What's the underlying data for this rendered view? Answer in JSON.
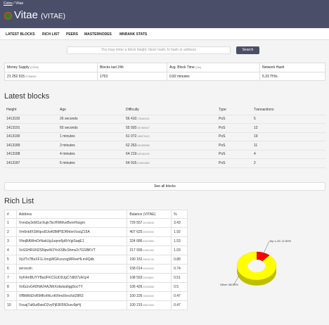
{
  "breadcrumb": {
    "root": "Coins",
    "separator": "/",
    "current": "Vitae"
  },
  "title": {
    "name": "Vitae",
    "ticker": "(VITAE)"
  },
  "nav": [
    "LATEST BLOCKS",
    "RICH LIST",
    "PEERS",
    "MASTERNODES",
    "MNRANK STATS"
  ],
  "search": {
    "placeholder": "You may enter a block height, block hash, tx hash or address",
    "button": "Search"
  },
  "stats": [
    {
      "label": "Money Supply",
      "label_small": "(VITAE)",
      "value": "21 252 915",
      "value_small": ".37358340"
    },
    {
      "label": "Blocks last 24h",
      "label_small": "",
      "value": "1753",
      "value_small": ""
    },
    {
      "label": "Avg. Block Time",
      "label_small": "(24h)",
      "value": "0.82 minutes",
      "value_small": ""
    },
    {
      "label": "Network Hash",
      "label_small": "",
      "value": "5.33 TH/s",
      "value_small": ""
    }
  ],
  "latest_blocks": {
    "title": "Latest blocks",
    "headers": [
      "Height",
      "Age",
      "Difficulty",
      "Type",
      "Transactions"
    ],
    "rows": [
      {
        "height": "1413192",
        "age": "26 seconds",
        "diff": "56 410",
        "diff_small": ".178464001",
        "type": "PoS",
        "tx": "5"
      },
      {
        "height": "1413191",
        "age": "65 seconds",
        "diff": "55 920",
        "diff_small": ".287489027",
        "type": "PoS",
        "tx": "12"
      },
      {
        "height": "1413190",
        "age": "1 minutes",
        "diff": "61 072",
        "diff_small": ".188975115",
        "type": "PoS",
        "tx": "19"
      },
      {
        "height": "1413189",
        "age": "3 minutes",
        "diff": "62 263",
        "diff_small": ".060289989",
        "type": "PoS",
        "tx": "11"
      },
      {
        "height": "1413188",
        "age": "4 minutes",
        "diff": "64 219",
        "diff_small": ".549181159",
        "type": "PoS",
        "tx": "4"
      },
      {
        "height": "1413187",
        "age": "6 minutes",
        "diff": "64 915",
        "diff_small": ".913604862",
        "type": "PoS",
        "tx": "2"
      }
    ],
    "see_all": "See all blocks"
  },
  "rich_list": {
    "title": "Rich List",
    "headers": [
      "#",
      "Address",
      "Balance (VITAE)",
      "%"
    ],
    "rows": [
      {
        "rank": "1",
        "address": "Vvnxby3eM1srXujk7bcHWMveBvreHsqyin",
        "bal": "729 557",
        "bal_small": ".06148535",
        "pct": "3.43"
      },
      {
        "rank": "2",
        "address": "Vm6nbfXSWqod0JwK8MP5DRhbeVssqZ15A",
        "bal": "407 625",
        "bal_small": ".00000000",
        "pct": "1.92"
      },
      {
        "rank": "3",
        "address": "VfsqBAWmDrNakUgJuqno6pRrVgiSaqE1",
        "bal": "324 686",
        "bal_small": ".53342880",
        "pct": "1.53"
      },
      {
        "rank": "4",
        "address": "VoSSHRUN2SNpwWJYoXSBcShms2r7GSBKVT",
        "bal": "217 936",
        "bal_small": ".01681082",
        "pct": "1.03"
      },
      {
        "rank": "5",
        "address": "Vp3Tx7BeXF1LXmgWGKzzzogWReeHLm4Qdk",
        "bal": "190 152",
        "bal_small": ".09526726",
        "pct": "0.89"
      },
      {
        "rank": "6",
        "address": "zerocoin",
        "bal": "158 014",
        "bal_small": ".00000000",
        "pct": "0.74"
      },
      {
        "rank": "7",
        "address": "VyK4mBUYYBaUFKCSUD9JgC7d837zA1p4",
        "bal": "108 593",
        "bal_small": ".32096801",
        "pct": "0.51"
      },
      {
        "rank": "8",
        "address": "Vo6zzvG4DNA24AJMrXotwisa6gg5ocTY",
        "bal": "106 426",
        "bal_small": ".30335588",
        "pct": "0.5"
      },
      {
        "rank": "9",
        "address": "VfBttWd2nR9tfKofihLnKRmdXesXst28R2",
        "bal": "100 226",
        "bal_small": ".76053200",
        "pct": "0.47"
      },
      {
        "rank": "10",
        "address": "Vxuaj7aKkzBsieD2vyPj8JR5N3uvv9pHj",
        "bal": "100 215",
        "bal_small": ".95601560",
        "pct": "0.47"
      }
    ]
  },
  "chart_data": {
    "type": "pie",
    "series": [
      {
        "name": "Top 1-25",
        "value": 11.5
      },
      {
        "name": "Other",
        "value": 88.5
      }
    ],
    "labels": [
      "Top 1-25: 11.50%",
      "Other: 88.50%"
    ],
    "colors": [
      "#ff0000",
      "#ffff00"
    ]
  }
}
